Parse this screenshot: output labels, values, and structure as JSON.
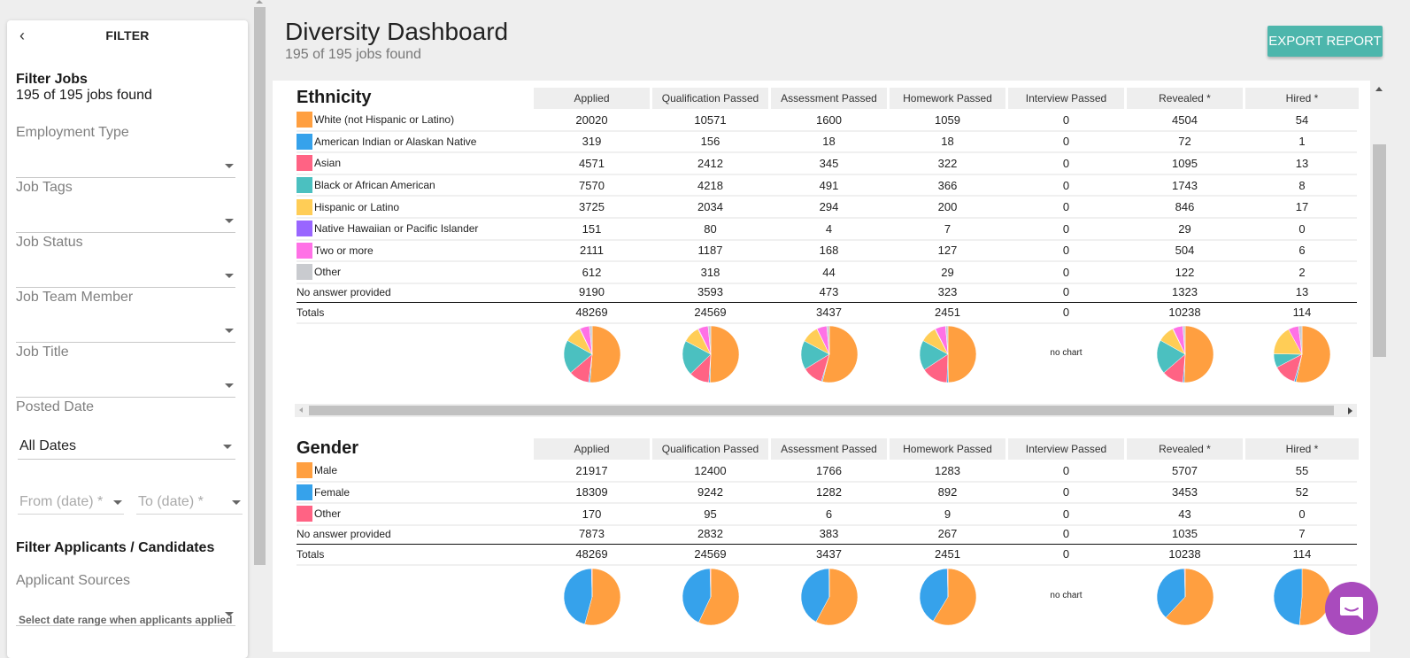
{
  "sidebar": {
    "back_icon": "chevron-left-icon",
    "title": "FILTER",
    "filter_jobs_title": "Filter Jobs",
    "jobs_found": "195 of 195 jobs found",
    "fields": [
      {
        "label": "Employment Type"
      },
      {
        "label": "Job Tags"
      },
      {
        "label": "Job Status"
      },
      {
        "label": "Job Team Member"
      },
      {
        "label": "Job Title"
      }
    ],
    "posted_date": {
      "label": "Posted Date",
      "value": "All Dates"
    },
    "from_date_placeholder": "From (date) *",
    "to_date_placeholder": "To (date) *",
    "filter_applicants_title": "Filter Applicants / Candidates",
    "applicant_sources": {
      "label": "Applicant Sources"
    },
    "hint": "Select date range when applicants applied"
  },
  "header": {
    "title": "Diversity Dashboard",
    "subtitle": "195 of 195 jobs found",
    "export_label": "EXPORT REPORT"
  },
  "columns": [
    "Applied",
    "Qualification Passed",
    "Assessment Passed",
    "Homework Passed",
    "Interview Passed",
    "Revealed  *",
    "Hired  *"
  ],
  "colors": {
    "orange": "#ff9f40",
    "blue": "#36a2eb",
    "pink": "#ff6384",
    "teal": "#4bc0c0",
    "yellow": "#ffcd56",
    "purple": "#9966ff",
    "magenta": "#ff71e6",
    "grey": "#c9cbcf",
    "accent": "#4db6ac",
    "chat": "#a94bbd"
  },
  "no_chart_label": "no chart",
  "ethnicity": {
    "title": "Ethnicity",
    "rows": [
      {
        "name": "White (not Hispanic or Latino)",
        "color": "#ff9f40",
        "values": [
          20020,
          10571,
          1600,
          1059,
          0,
          4504,
          54
        ]
      },
      {
        "name": "American Indian or Alaskan Native",
        "color": "#36a2eb",
        "values": [
          319,
          156,
          18,
          18,
          0,
          72,
          1
        ]
      },
      {
        "name": "Asian",
        "color": "#ff6384",
        "values": [
          4571,
          2412,
          345,
          322,
          0,
          1095,
          13
        ]
      },
      {
        "name": "Black or African American",
        "color": "#4bc0c0",
        "values": [
          7570,
          4218,
          491,
          366,
          0,
          1743,
          8
        ]
      },
      {
        "name": "Hispanic or Latino",
        "color": "#ffcd56",
        "values": [
          3725,
          2034,
          294,
          200,
          0,
          846,
          17
        ]
      },
      {
        "name": "Native Hawaiian or Pacific Islander",
        "color": "#9966ff",
        "values": [
          151,
          80,
          4,
          7,
          0,
          29,
          0
        ]
      },
      {
        "name": "Two or more",
        "color": "#ff71e6",
        "values": [
          2111,
          1187,
          168,
          127,
          0,
          504,
          6
        ]
      },
      {
        "name": "Other",
        "color": "#c9cbcf",
        "values": [
          612,
          318,
          44,
          29,
          0,
          122,
          2
        ]
      }
    ],
    "no_answer": {
      "name": "No answer provided",
      "values": [
        9190,
        3593,
        473,
        323,
        0,
        1323,
        13
      ]
    },
    "totals": {
      "name": "Totals",
      "values": [
        48269,
        24569,
        3437,
        2451,
        0,
        10238,
        114
      ]
    }
  },
  "gender": {
    "title": "Gender",
    "rows": [
      {
        "name": "Male",
        "color": "#ff9f40",
        "values": [
          21917,
          12400,
          1766,
          1283,
          0,
          5707,
          55
        ]
      },
      {
        "name": "Female",
        "color": "#36a2eb",
        "values": [
          18309,
          9242,
          1282,
          892,
          0,
          3453,
          52
        ]
      },
      {
        "name": "Other",
        "color": "#ff6384",
        "values": [
          170,
          95,
          6,
          9,
          0,
          43,
          0
        ]
      }
    ],
    "no_answer": {
      "name": "No answer provided",
      "values": [
        7873,
        2832,
        383,
        267,
        0,
        1035,
        7
      ]
    },
    "totals": {
      "name": "Totals",
      "values": [
        48269,
        24569,
        3437,
        2451,
        0,
        10238,
        114
      ]
    }
  },
  "chart_data": [
    {
      "type": "pie",
      "title": "Ethnicity",
      "categories": [
        "White (not Hispanic or Latino)",
        "American Indian or Alaskan Native",
        "Asian",
        "Black or African American",
        "Hispanic or Latino",
        "Native Hawaiian or Pacific Islander",
        "Two or more",
        "Other"
      ],
      "series": [
        {
          "name": "Applied",
          "values": [
            20020,
            319,
            4571,
            7570,
            3725,
            151,
            2111,
            612
          ]
        },
        {
          "name": "Qualification Passed",
          "values": [
            10571,
            156,
            2412,
            4218,
            2034,
            80,
            1187,
            318
          ]
        },
        {
          "name": "Assessment Passed",
          "values": [
            1600,
            18,
            345,
            491,
            294,
            4,
            168,
            44
          ]
        },
        {
          "name": "Homework Passed",
          "values": [
            1059,
            18,
            322,
            366,
            200,
            7,
            127,
            29
          ]
        },
        {
          "name": "Interview Passed",
          "values": [
            0,
            0,
            0,
            0,
            0,
            0,
            0,
            0
          ]
        },
        {
          "name": "Revealed",
          "values": [
            4504,
            72,
            1095,
            1743,
            846,
            29,
            504,
            122
          ]
        },
        {
          "name": "Hired",
          "values": [
            54,
            1,
            13,
            8,
            17,
            0,
            6,
            2
          ]
        }
      ]
    },
    {
      "type": "pie",
      "title": "Gender",
      "categories": [
        "Male",
        "Female",
        "Other"
      ],
      "series": [
        {
          "name": "Applied",
          "values": [
            21917,
            18309,
            170
          ]
        },
        {
          "name": "Qualification Passed",
          "values": [
            12400,
            9242,
            95
          ]
        },
        {
          "name": "Assessment Passed",
          "values": [
            1766,
            1282,
            6
          ]
        },
        {
          "name": "Homework Passed",
          "values": [
            1283,
            892,
            9
          ]
        },
        {
          "name": "Interview Passed",
          "values": [
            0,
            0,
            0
          ]
        },
        {
          "name": "Revealed",
          "values": [
            5707,
            3453,
            43
          ]
        },
        {
          "name": "Hired",
          "values": [
            55,
            52,
            0
          ]
        }
      ]
    }
  ]
}
